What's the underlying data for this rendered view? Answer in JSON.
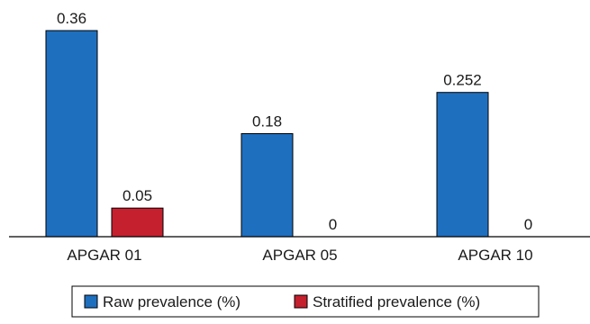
{
  "chart_data": {
    "type": "bar",
    "categories": [
      "APGAR 01",
      "APGAR 05",
      "APGAR 10"
    ],
    "series": [
      {
        "name": "Raw prevalence (%)",
        "values": [
          0.36,
          0.18,
          0.252
        ],
        "labels": [
          "0.36",
          "0.18",
          "0.252"
        ],
        "color": "#1f6fbf"
      },
      {
        "name": "Stratified prevalence (%)",
        "values": [
          0.05,
          0,
          0
        ],
        "labels": [
          "0.05",
          "0",
          "0"
        ],
        "color": "#c4202e"
      }
    ],
    "ylim": [
      0,
      0.36
    ],
    "grid": false,
    "legend": "bottom-center"
  }
}
